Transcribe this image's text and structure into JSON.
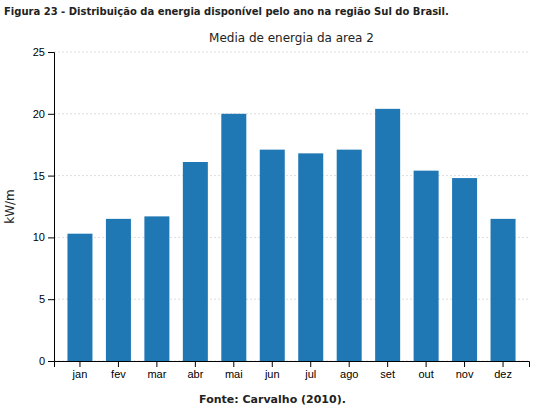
{
  "chart_data": {
    "type": "bar",
    "title": "Media de energia da area 2",
    "subtitle": "Figura 23 - Distribuição da energia disponível pelo ano na região Sul do Brasil.",
    "ylabel": "kW/m",
    "annotations": [
      "Fonte: Carvalho (2010)."
    ],
    "categories": [
      "jan",
      "fev",
      "mar",
      "abr",
      "mai",
      "jun",
      "jul",
      "ago",
      "set",
      "out",
      "nov",
      "dez"
    ],
    "values": [
      10.3,
      11.5,
      11.7,
      16.1,
      20.0,
      17.1,
      16.8,
      17.1,
      20.4,
      15.4,
      14.8,
      11.5
    ],
    "ylim": [
      0,
      25
    ],
    "yticks": [
      0,
      5,
      10,
      15,
      20,
      25
    ],
    "grid": true
  }
}
